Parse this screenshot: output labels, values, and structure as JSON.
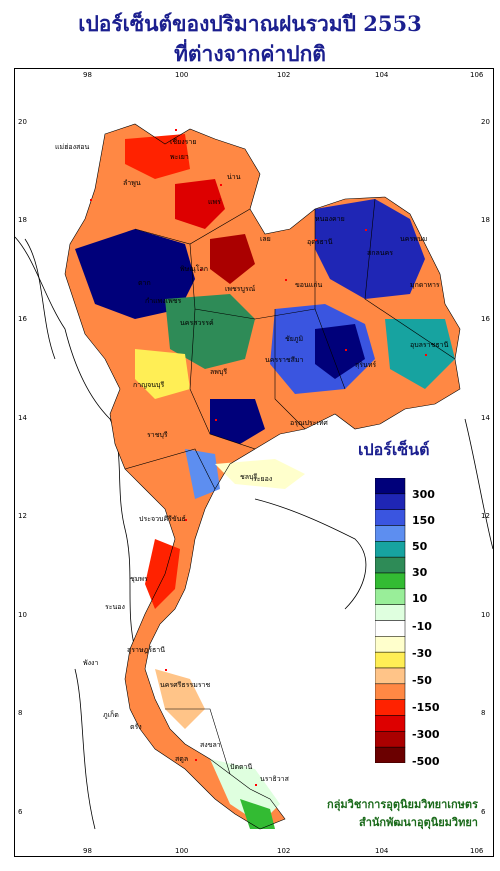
{
  "title_line1": "เปอร์เซ็นต์ของปริมาณฝนรวมปี  2553",
  "title_line2": "ที่ต่างจากค่าปกติ",
  "axis": {
    "lon_ticks": [
      "98",
      "100",
      "102",
      "104",
      "106"
    ],
    "lat_ticks": [
      "20",
      "18",
      "16",
      "14",
      "12",
      "10",
      "8",
      "6"
    ]
  },
  "legend": {
    "title": "เปอร์เซ็นต์",
    "colors": [
      "#00007a",
      "#1f26b5",
      "#3a55e0",
      "#5d8ef0",
      "#17a3a0",
      "#2e8b57",
      "#33bb33",
      "#99ee99",
      "#dfffdf",
      "#ffffff",
      "#ffffcc",
      "#ffee55",
      "#ffc488",
      "#ff8844",
      "#ff2200",
      "#dd0000",
      "#aa0000",
      "#6b0000"
    ],
    "labels": [
      "300",
      "150",
      "50",
      "30",
      "10",
      "-10",
      "-30",
      "-50",
      "-150",
      "-300",
      "-500"
    ]
  },
  "places": [
    "เชียงราย",
    "แม่ฮ่องสอน",
    "พะเยา",
    "น่าน",
    "ลำพูน",
    "แพร่",
    "หนองคาย",
    "อุดรธานี",
    "นครพนม",
    "สกลนคร",
    "เลย",
    "มุกดาหาร",
    "พิษณุโลก",
    "ตาก",
    "ขอนแก่น",
    "เพชรบูรณ์",
    "กำแพงเพชร",
    "อุบลราชธานี",
    "นครสวรรค์",
    "ชัยภูมิ",
    "นครราชสีมา",
    "สุรินทร์",
    "กาญจนบุรี",
    "ลพบุรี",
    "อรุณประเทศ",
    "ราชบุรี",
    "ชลบุรี",
    "ระยอง",
    "ประจวบคีรีขันธ์",
    "ชุมพร",
    "ระนอง",
    "สุราษฎร์ธานี",
    "นครศรีธรรมราช",
    "พังงา",
    "ภูเก็ต",
    "ตรัง",
    "สงขลา",
    "สตูล",
    "ปัตตานี",
    "นราธิวาส"
  ],
  "credit_line1": "กลุ่มวิชาการอุตุนิยมวิทยาเกษตร",
  "credit_line2": "สำนักพัฒนาอุตุนิยมวิทยา"
}
